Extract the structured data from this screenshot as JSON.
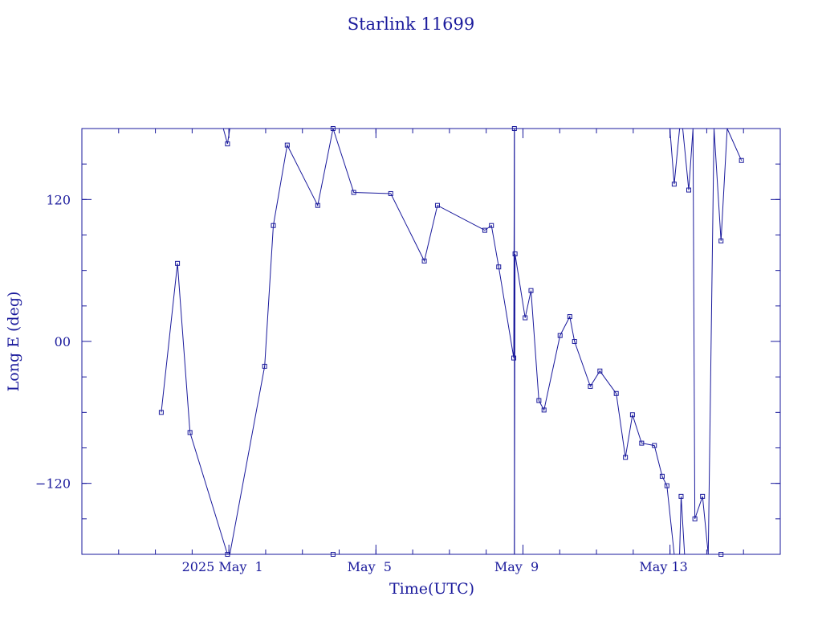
{
  "chart_data": {
    "type": "line",
    "title": "Starlink 11699",
    "xlabel": "Time(UTC)",
    "ylabel": "Long E (deg)",
    "color": "#1a1a9c",
    "xlim": [
      "2025-04-27T00:00",
      "2025-05-16T00:00"
    ],
    "ylim": [
      -180,
      180
    ],
    "xticks": [
      {
        "date": "2025-05-01T00:00",
        "label": "2025 May  1"
      },
      {
        "date": "2025-05-05T00:00",
        "label": "May  5"
      },
      {
        "date": "2025-05-09T00:00",
        "label": "May  9"
      },
      {
        "date": "2025-05-13T00:00",
        "label": "May 13"
      }
    ],
    "yticks": [
      {
        "value": 120,
        "label": "120"
      },
      {
        "value": 0,
        "label": "00"
      },
      {
        "value": -120,
        "label": "−120"
      }
    ],
    "grid": false,
    "series": [
      {
        "points": [
          [
            "2025-04-29T03:50",
            -60
          ],
          [
            "2025-04-29T14:25",
            66
          ],
          [
            "2025-04-29T22:35",
            -77
          ],
          [
            "2025-04-30T23:05",
            -180
          ],
          [
            "2025-04-30T20:20",
            180
          ],
          [
            "2025-04-30T23:05",
            167
          ],
          [
            "2025-05-01T00:36",
            180
          ],
          [
            "2025-05-01T00:36",
            -180
          ],
          [
            "2025-05-01T23:20",
            -21
          ],
          [
            "2025-05-02T05:00",
            98
          ],
          [
            "2025-05-02T14:05",
            166
          ],
          [
            "2025-05-03T10:00",
            115
          ],
          [
            "2025-05-03T20:00",
            180
          ],
          [
            "2025-05-04T09:30",
            126
          ],
          [
            "2025-05-05T09:40",
            125
          ],
          [
            "2025-05-06T07:35",
            68
          ],
          [
            "2025-05-06T16:10",
            115
          ],
          [
            "2025-05-07T23:05",
            94
          ],
          [
            "2025-05-08T03:25",
            98
          ],
          [
            "2025-05-08T08:10",
            63
          ],
          [
            "2025-05-08T18:00",
            -14
          ],
          [
            "2025-05-08T18:25",
            180
          ],
          [
            "2025-05-08T18:25",
            -180
          ],
          [
            "2025-05-08T18:50",
            74
          ],
          [
            "2025-05-09T01:25",
            20
          ],
          [
            "2025-05-09T05:15",
            43
          ],
          [
            "2025-05-09T10:25",
            -50
          ],
          [
            "2025-05-09T13:45",
            -58
          ],
          [
            "2025-05-10T00:15",
            5
          ],
          [
            "2025-05-10T06:35",
            21
          ],
          [
            "2025-05-10T09:40",
            0
          ],
          [
            "2025-05-10T20:00",
            -38
          ],
          [
            "2025-05-11T02:15",
            -25
          ],
          [
            "2025-05-11T12:55",
            -44
          ],
          [
            "2025-05-11T18:55",
            -98
          ],
          [
            "2025-05-11T23:30",
            -62
          ],
          [
            "2025-05-12T05:30",
            -86
          ],
          [
            "2025-05-12T13:50",
            -88
          ],
          [
            "2025-05-12T18:55",
            -114
          ],
          [
            "2025-05-12T22:00",
            -122
          ],
          [
            "2025-05-13T02:45",
            -180
          ],
          [
            "2025-05-12T23:55",
            180
          ],
          [
            "2025-05-13T02:45",
            133
          ],
          [
            "2025-05-13T06:15",
            180
          ],
          [
            "2025-05-13T06:15",
            -180
          ],
          [
            "2025-05-13T07:15",
            -131
          ],
          [
            "2025-05-13T09:30",
            -180
          ],
          [
            "2025-05-13T08:20",
            180
          ],
          [
            "2025-05-13T12:15",
            128
          ],
          [
            "2025-05-13T15:00",
            180
          ],
          [
            "2025-05-13T16:15",
            -150
          ],
          [
            "2025-05-13T21:15",
            -131
          ],
          [
            "2025-05-14T01:00",
            -180
          ],
          [
            "2025-05-14T04:45",
            180
          ],
          [
            "2025-05-14T09:20",
            85
          ],
          [
            "2025-05-14T13:20",
            180
          ],
          [
            "2025-05-14T22:40",
            153
          ]
        ],
        "markers": [
          [
            "2025-04-29T03:50",
            -60
          ],
          [
            "2025-04-29T14:25",
            66
          ],
          [
            "2025-04-29T22:35",
            -77
          ],
          [
            "2025-04-30T23:05",
            -180
          ],
          [
            "2025-04-30T23:05",
            167
          ],
          [
            "2025-05-01T23:20",
            -21
          ],
          [
            "2025-05-02T05:00",
            98
          ],
          [
            "2025-05-02T14:05",
            166
          ],
          [
            "2025-05-03T10:00",
            115
          ],
          [
            "2025-05-03T20:00",
            180
          ],
          [
            "2025-05-03T20:00",
            -180
          ],
          [
            "2025-05-04T09:30",
            126
          ],
          [
            "2025-05-05T09:40",
            125
          ],
          [
            "2025-05-06T07:35",
            68
          ],
          [
            "2025-05-06T16:10",
            115
          ],
          [
            "2025-05-07T23:05",
            94
          ],
          [
            "2025-05-08T03:25",
            98
          ],
          [
            "2025-05-08T08:10",
            63
          ],
          [
            "2025-05-08T18:00",
            -14
          ],
          [
            "2025-05-08T18:25",
            180
          ],
          [
            "2025-05-08T18:50",
            74
          ],
          [
            "2025-05-09T01:25",
            20
          ],
          [
            "2025-05-09T05:15",
            43
          ],
          [
            "2025-05-09T10:25",
            -50
          ],
          [
            "2025-05-09T13:45",
            -58
          ],
          [
            "2025-05-10T00:15",
            5
          ],
          [
            "2025-05-10T06:35",
            21
          ],
          [
            "2025-05-10T09:40",
            0
          ],
          [
            "2025-05-10T20:00",
            -38
          ],
          [
            "2025-05-11T02:15",
            -25
          ],
          [
            "2025-05-11T12:55",
            -44
          ],
          [
            "2025-05-11T18:55",
            -98
          ],
          [
            "2025-05-11T23:30",
            -62
          ],
          [
            "2025-05-12T05:30",
            -86
          ],
          [
            "2025-05-12T13:50",
            -88
          ],
          [
            "2025-05-12T18:55",
            -114
          ],
          [
            "2025-05-12T22:00",
            -122
          ],
          [
            "2025-05-13T02:45",
            133
          ],
          [
            "2025-05-13T07:15",
            -131
          ],
          [
            "2025-05-13T12:15",
            128
          ],
          [
            "2025-05-13T16:15",
            -150
          ],
          [
            "2025-05-13T21:15",
            -131
          ],
          [
            "2025-05-14T09:20",
            85
          ],
          [
            "2025-05-14T09:20",
            -180
          ],
          [
            "2025-05-14T22:40",
            153
          ]
        ]
      }
    ]
  }
}
